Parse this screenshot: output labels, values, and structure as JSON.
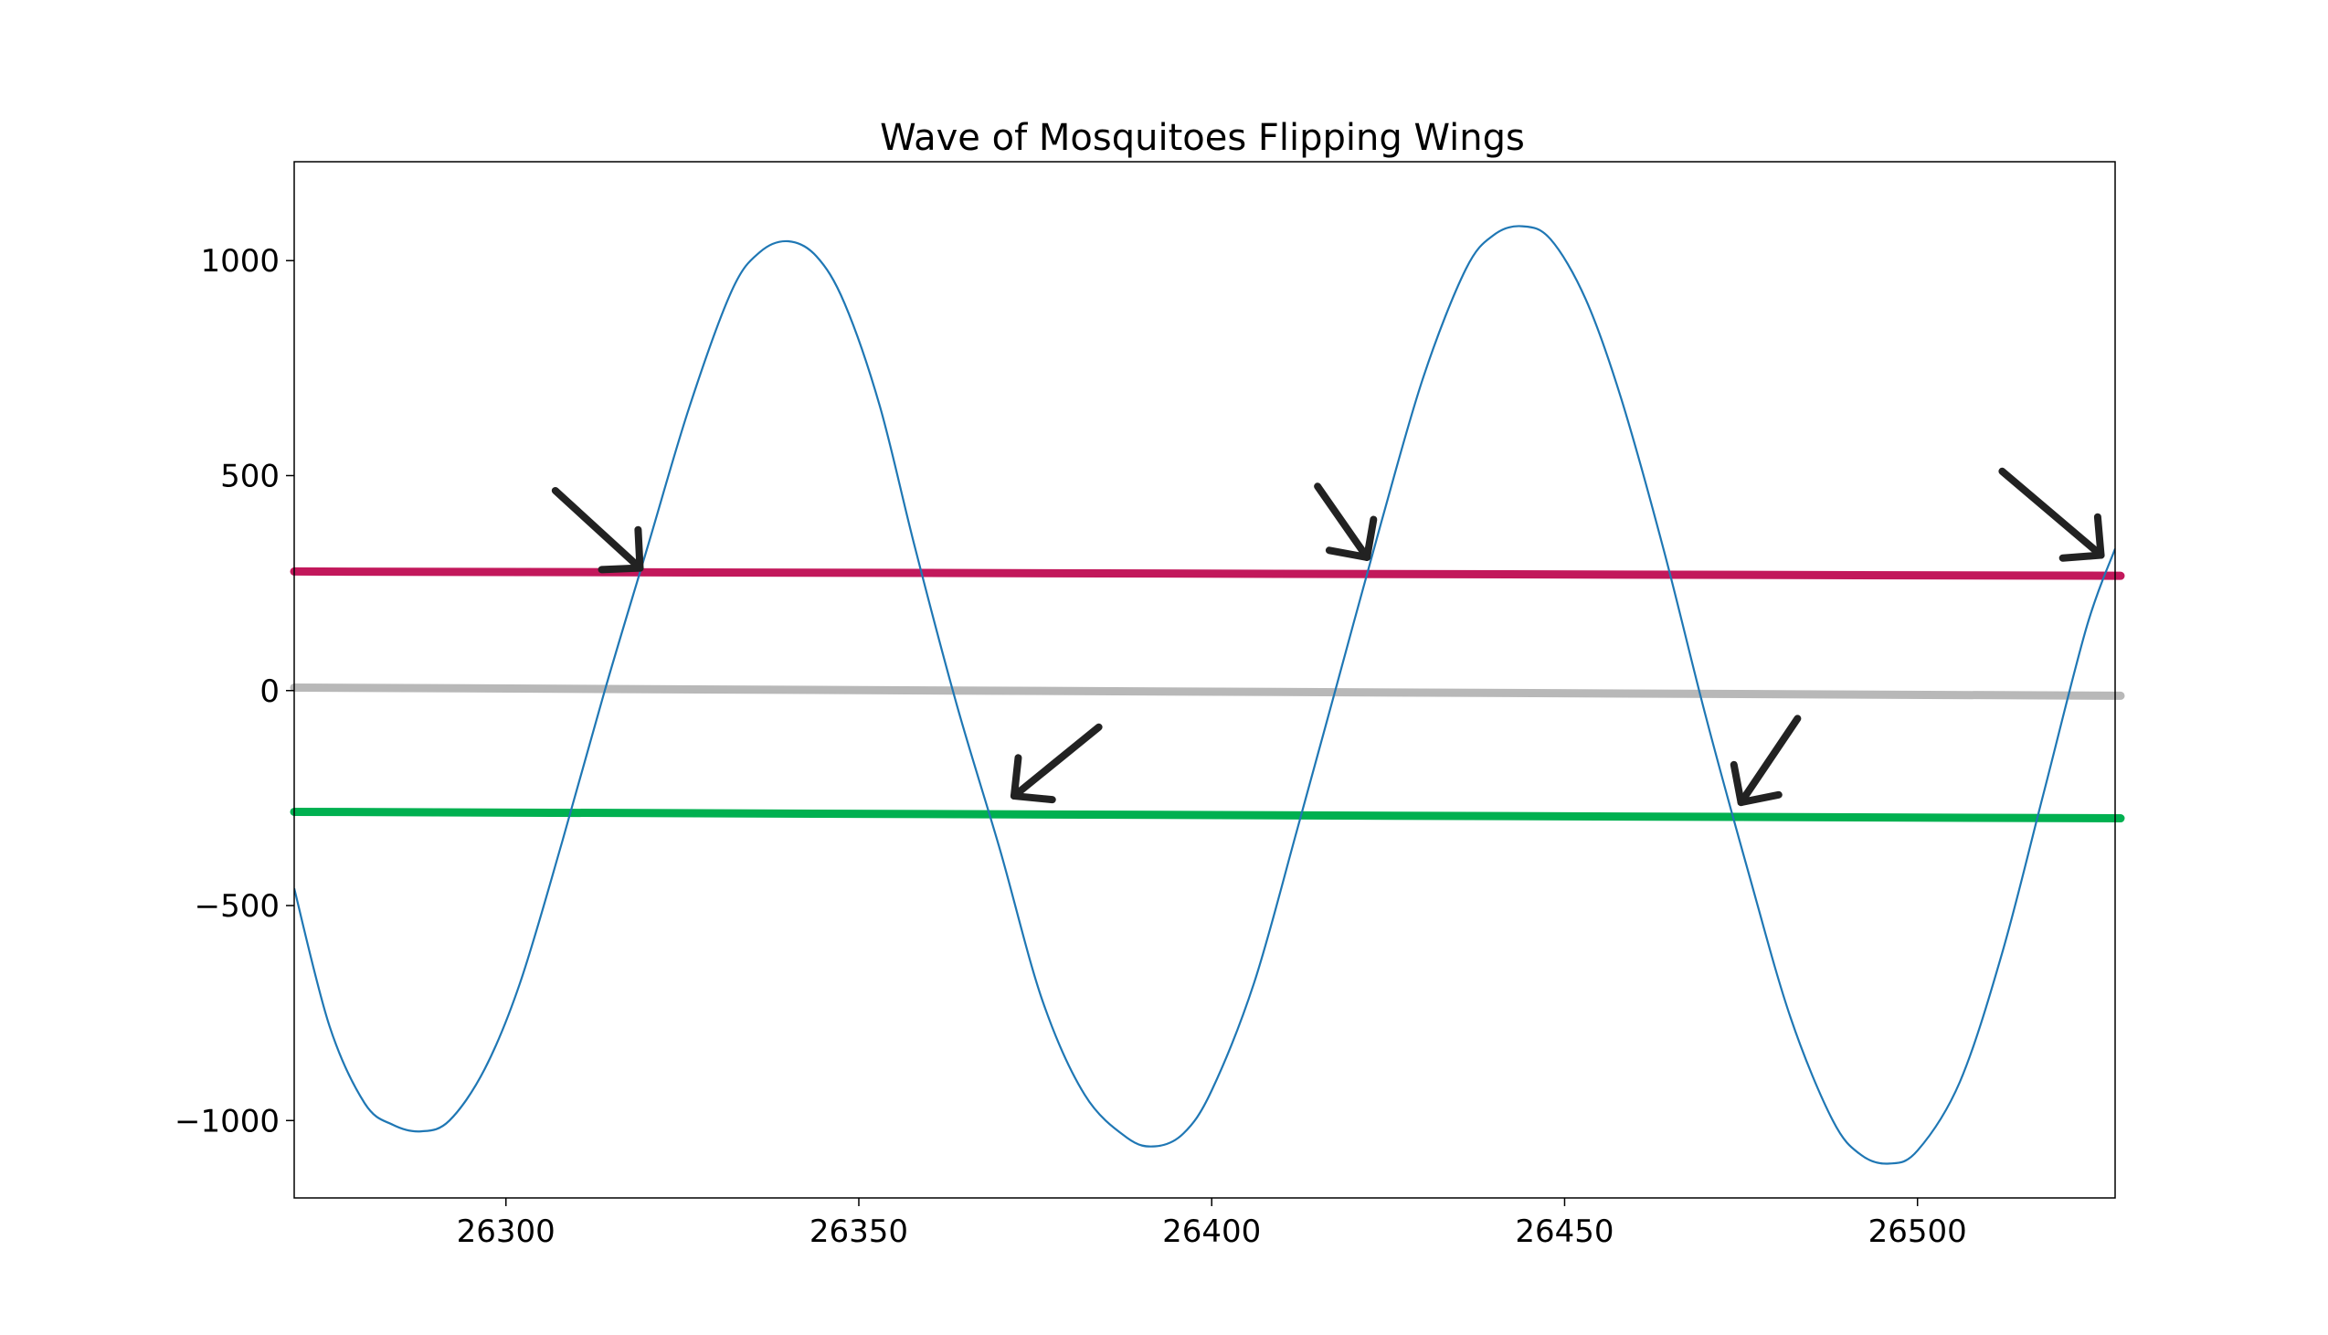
{
  "chart_data": {
    "type": "line",
    "title": "Wave of Mosquitoes Flipping Wings",
    "xlabel": "",
    "ylabel": "",
    "xlim": [
      26270,
      26528
    ],
    "ylim": [
      -1180,
      1230
    ],
    "x_ticks": [
      26300,
      26350,
      26400,
      26450,
      26500
    ],
    "x_tick_labels": [
      "26300",
      "26350",
      "26400",
      "26450",
      "26500"
    ],
    "y_ticks": [
      1000,
      500,
      0,
      -500,
      -1000
    ],
    "y_tick_labels": [
      "1000",
      "500",
      "0",
      "−500",
      "−1000"
    ],
    "grid": false,
    "legend": false,
    "series": [
      {
        "color": "#1f77b4",
        "x": [
          26270,
          26275,
          26280,
          26284,
          26288,
          26292,
          26297,
          26302,
          26308,
          26314,
          26320,
          26326,
          26332,
          26336,
          26340,
          26344,
          26348,
          26353,
          26358,
          26364,
          26370,
          26376,
          26382,
          26388,
          26392,
          26396,
          26400,
          26406,
          26412,
          26418,
          26424,
          26430,
          26436,
          26440,
          26444,
          26448,
          26453,
          26458,
          26464,
          26470,
          26476,
          26482,
          26488,
          26492,
          26496,
          26500,
          26506,
          26512,
          26518,
          26524,
          26528
        ],
        "y": [
          -460,
          -780,
          -960,
          -1010,
          -1025,
          -1000,
          -880,
          -680,
          -350,
          0,
          330,
          660,
          930,
          1020,
          1045,
          1010,
          900,
          660,
          330,
          -40,
          -370,
          -720,
          -940,
          -1040,
          -1060,
          -1030,
          -930,
          -680,
          -330,
          30,
          390,
          730,
          980,
          1060,
          1080,
          1050,
          910,
          680,
          330,
          -60,
          -420,
          -760,
          -1000,
          -1080,
          -1100,
          -1070,
          -910,
          -610,
          -230,
          150,
          330
        ]
      }
    ],
    "reference_lines": [
      {
        "color": "#c2185b",
        "x": [
          26270,
          26528
        ],
        "y": [
          277,
          267
        ]
      },
      {
        "color": "#b8b8b8",
        "x": [
          26270,
          26528
        ],
        "y": [
          7,
          -12
        ]
      },
      {
        "color": "#00b050",
        "x": [
          26270,
          26528
        ],
        "y": [
          -282,
          -297
        ]
      }
    ],
    "annotations": [
      {
        "type": "arrow",
        "color": "#222222",
        "from": [
          26307,
          465
        ],
        "to": [
          26319,
          285
        ]
      },
      {
        "type": "arrow",
        "color": "#222222",
        "from": [
          26384,
          -85
        ],
        "to": [
          26372,
          -245
        ]
      },
      {
        "type": "arrow",
        "color": "#222222",
        "from": [
          26415,
          475
        ],
        "to": [
          26422,
          310
        ]
      },
      {
        "type": "arrow",
        "color": "#222222",
        "from": [
          26483,
          -65
        ],
        "to": [
          26475,
          -260
        ]
      },
      {
        "type": "arrow",
        "color": "#222222",
        "from": [
          26512,
          510
        ],
        "to": [
          26526,
          315
        ]
      }
    ]
  }
}
